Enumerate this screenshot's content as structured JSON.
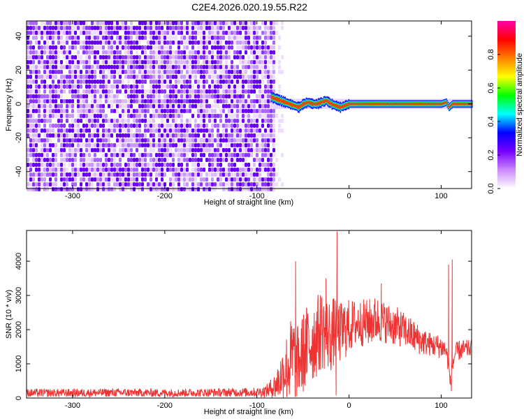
{
  "title": "C2E4.2026.020.19.55.R22",
  "chart_data": [
    {
      "type": "heatmap",
      "xlabel": "Height of straight line (km)",
      "ylabel": "Frequency (Hz)",
      "xlim": [
        -350,
        133
      ],
      "ylim": [
        -50,
        49
      ],
      "x_ticks": [
        -300,
        -200,
        -100,
        0,
        100
      ],
      "y_ticks": [
        -40,
        -20,
        0,
        20,
        40
      ],
      "noise_region_x": [
        -350,
        -83
      ],
      "signal_start_x": -85,
      "signal_trace": {
        "x": [
          -85,
          -80,
          -75,
          -70,
          -65,
          -60,
          -55,
          -50,
          -45,
          -40,
          -35,
          -30,
          -25,
          -20,
          -15,
          -10,
          -5,
          0,
          10,
          20,
          30,
          40,
          60,
          80,
          100,
          105,
          108,
          112,
          120,
          133
        ],
        "freq": [
          4,
          3,
          2,
          1,
          0,
          -1,
          -2,
          0,
          1,
          0,
          0,
          1,
          2,
          0,
          -1,
          -2,
          -1,
          0,
          0,
          0,
          0,
          0,
          0,
          0,
          0,
          1,
          -2,
          0,
          0,
          0
        ]
      },
      "colorbar": {
        "label": "Normalized spectral amplitude",
        "min": 0.0,
        "max": 1.0,
        "ticks": [
          "0.0",
          "0.2",
          "0.4",
          "0.6",
          "0.8"
        ],
        "colors": [
          "#ffffff",
          "#cc88ff",
          "#7700ff",
          "#0000ff",
          "#00ffff",
          "#00ff00",
          "#ffff00",
          "#ff8000",
          "#ff0000",
          "#ff00aa"
        ]
      }
    },
    {
      "type": "line",
      "xlabel": "Height of straight line (km)",
      "ylabel": "SNR (10 * v/v)",
      "xlim": [
        -350,
        133
      ],
      "ylim": [
        0,
        4900
      ],
      "x_ticks": [
        -300,
        -200,
        -100,
        0,
        100
      ],
      "y_ticks": [
        0,
        1000,
        2000,
        3000,
        4000
      ],
      "line_color": "#ee3333",
      "envelope": {
        "x": [
          -350,
          -300,
          -250,
          -200,
          -150,
          -100,
          -90,
          -80,
          -70,
          -65,
          -60,
          -58,
          -55,
          -50,
          -45,
          -40,
          -35,
          -30,
          -25,
          -20,
          -15,
          -10,
          -5,
          0,
          10,
          20,
          30,
          40,
          50,
          60,
          70,
          80,
          90,
          100,
          105,
          108,
          110,
          112,
          115,
          120,
          133
        ],
        "base": [
          150,
          150,
          160,
          150,
          160,
          170,
          200,
          350,
          800,
          1000,
          1200,
          900,
          1100,
          1300,
          1500,
          1700,
          1800,
          2000,
          1900,
          1800,
          2000,
          1900,
          2000,
          2100,
          2200,
          2200,
          2300,
          2200,
          2100,
          2000,
          1800,
          1650,
          1550,
          1500,
          1400,
          1000,
          400,
          900,
          1300,
          1400,
          1450
        ],
        "amp": [
          120,
          120,
          120,
          120,
          120,
          140,
          180,
          400,
          900,
          1200,
          1400,
          1000,
          1100,
          1200,
          1300,
          1300,
          1200,
          1200,
          1100,
          1100,
          1000,
          900,
          900,
          800,
          700,
          700,
          700,
          600,
          600,
          500,
          500,
          400,
          350,
          350,
          300,
          300,
          250,
          300,
          300,
          300,
          250
        ]
      },
      "peaks": [
        {
          "x": -58,
          "y": 4000
        },
        {
          "x": -13,
          "y": 4870
        },
        {
          "x": -25,
          "y": 3500
        },
        {
          "x": 35,
          "y": 3350
        },
        {
          "x": 108,
          "y": 3900
        },
        {
          "x": 112,
          "y": 4050
        }
      ],
      "dips": [
        {
          "x": -14,
          "y": 80
        },
        {
          "x": 111,
          "y": 200
        }
      ]
    }
  ]
}
